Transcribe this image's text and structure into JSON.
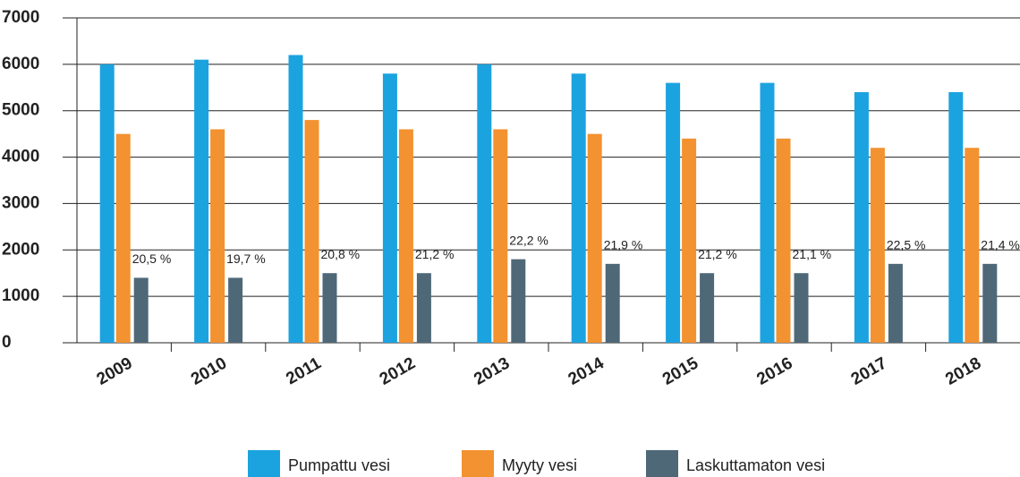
{
  "chart_data": {
    "type": "bar",
    "categories": [
      "2009",
      "2010",
      "2011",
      "2012",
      "2013",
      "2014",
      "2015",
      "2016",
      "2017",
      "2018"
    ],
    "series": [
      {
        "name": "Pumpattu vesi",
        "color": "#1ba3e0",
        "values": [
          6000,
          6100,
          6200,
          5800,
          6000,
          5800,
          5600,
          5600,
          5400,
          5400
        ]
      },
      {
        "name": "Myyty vesi",
        "color": "#f39230",
        "values": [
          4500,
          4600,
          4800,
          4600,
          4600,
          4500,
          4400,
          4400,
          4200,
          4200
        ]
      },
      {
        "name": "Laskuttamaton vesi",
        "color": "#4f6878",
        "values": [
          1400,
          1400,
          1500,
          1500,
          1800,
          1700,
          1500,
          1500,
          1700,
          1700
        ]
      }
    ],
    "annotations": [
      "20,5 %",
      "19,7 %",
      "20,8 %",
      "21,2 %",
      "22,2 %",
      "21,9 %",
      "21,2 %",
      "21,1 %",
      "22,5 %",
      "21,4 %"
    ],
    "ylim": [
      0,
      7000
    ],
    "yticks": [
      0,
      1000,
      2000,
      3000,
      4000,
      5000,
      6000,
      7000
    ],
    "grid": true
  }
}
